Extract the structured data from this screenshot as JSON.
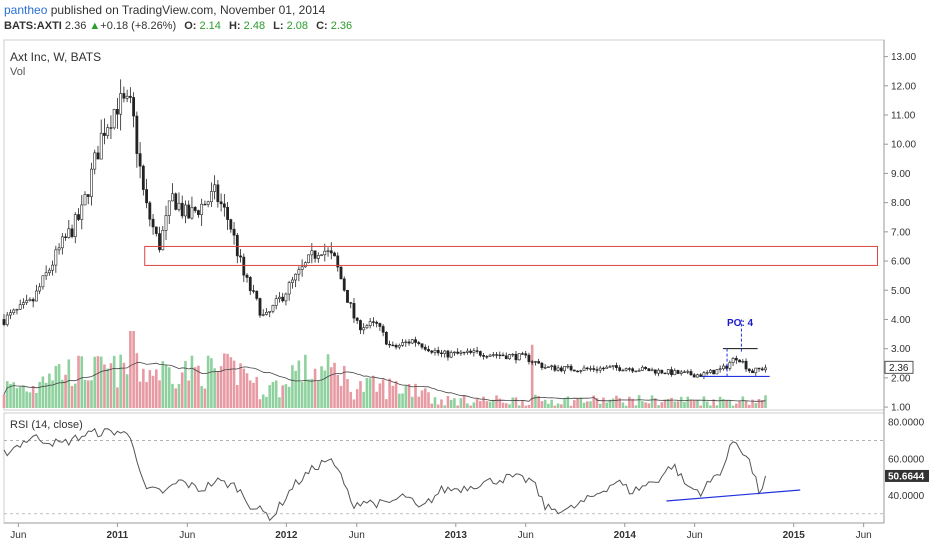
{
  "header": {
    "user": "pantheo",
    "published_text": " published on TradingView.com, November 01, 2014",
    "symbol": "BATS:AXTI",
    "last": "2.36",
    "change": "+0.18 (+8.26%)",
    "o_label": "O:",
    "o_value": "2.14",
    "h_label": "H:",
    "h_value": "2.48",
    "l_label": "L:",
    "l_value": "2.08",
    "c_label": "C:",
    "c_value": "2.36"
  },
  "chart": {
    "title": "Axt Inc, W, BATS",
    "vol_label": "Vol",
    "rsi_label": "RSI (14, close)",
    "po_label": "PO: 4",
    "last_price_tag": "2.36",
    "rsi_value_tag": "50.6644"
  },
  "colors": {
    "up": "#53b987",
    "down": "#eb4d5c",
    "vol_up": "#8fd19e",
    "vol_down": "#e89aa3",
    "rsi_line": "#555555",
    "trend_line": "#2233dd",
    "box": "#d44",
    "accent": "#2a6fd6"
  },
  "chart_data": [
    {
      "type": "candlestick",
      "title": "Axt Inc, W, BATS",
      "xlabel": "",
      "ylabel": "",
      "x_ticks": [
        "Jun",
        "2011",
        "Jun",
        "2012",
        "Jun",
        "2013",
        "Jun",
        "2014",
        "Jun",
        "2015",
        "Jun"
      ],
      "y_ticks": [
        "1.00",
        "2.00",
        "3.00",
        "4.00",
        "5.00",
        "6.00",
        "7.00",
        "8.00",
        "9.00",
        "10.00",
        "11.00",
        "12.00",
        "13.00"
      ],
      "ylim": [
        0.9,
        13.5
      ],
      "xlim": [
        "2010-05-01",
        "2015-07-15"
      ],
      "price_path": [
        [
          "2010-05-01",
          4.0
        ],
        [
          "2010-07-01",
          4.6
        ],
        [
          "2010-09-01",
          6.5
        ],
        [
          "2010-10-15",
          7.6
        ],
        [
          "2010-12-01",
          10.5
        ],
        [
          "2011-01-01",
          11.4
        ],
        [
          "2011-02-01",
          11.2
        ],
        [
          "2011-03-01",
          8.0
        ],
        [
          "2011-04-01",
          6.5
        ],
        [
          "2011-05-01",
          8.2
        ],
        [
          "2011-06-01",
          7.5
        ],
        [
          "2011-08-01",
          8.3
        ],
        [
          "2011-09-01",
          7.3
        ],
        [
          "2011-10-01",
          5.5
        ],
        [
          "2011-11-15",
          4.0
        ],
        [
          "2012-01-01",
          5.0
        ],
        [
          "2012-03-15",
          6.5
        ],
        [
          "2012-04-15",
          6.0
        ],
        [
          "2012-06-01",
          3.8
        ],
        [
          "2012-07-15",
          3.8
        ],
        [
          "2012-08-15",
          3.0
        ],
        [
          "2012-10-01",
          3.3
        ],
        [
          "2012-12-01",
          2.8
        ],
        [
          "2013-03-01",
          2.85
        ],
        [
          "2013-06-01",
          2.7
        ],
        [
          "2013-07-15",
          2.35
        ],
        [
          "2013-10-01",
          2.3
        ],
        [
          "2014-01-01",
          2.35
        ],
        [
          "2014-05-01",
          2.15
        ],
        [
          "2014-06-15",
          2.1
        ],
        [
          "2014-08-01",
          2.3
        ],
        [
          "2014-09-01",
          2.75
        ],
        [
          "2014-10-01",
          2.2
        ],
        [
          "2014-11-01",
          2.36
        ]
      ],
      "last_price": 2.36,
      "resistance_zone": {
        "from": "2011-03-01",
        "to": "2015-07-01",
        "low": 5.85,
        "high": 6.5
      },
      "triangle": {
        "top": {
          "from": "2014-08-01",
          "to": "2014-10-15",
          "price": 3.0
        },
        "base": {
          "from": "2014-06-15",
          "to": "2014-11-10",
          "price": 2.05
        },
        "projection": {
          "date": "2014-09-10",
          "from": 2.9,
          "to": 4.0
        }
      },
      "annotations": [
        "PO: 4"
      ]
    },
    {
      "type": "bar",
      "name": "Vol",
      "pattern": "weekly volume bars; tallest bars around late 2010 to 2011, tapering to very low volume in 2013-2014 with one tall spike near Jun 2013"
    },
    {
      "type": "line",
      "name": "RSI (14, close)",
      "y_ticks": [
        "40.0000",
        "60.0000",
        "80.0000"
      ],
      "ylim": [
        25,
        85
      ],
      "levels": [
        30,
        70
      ],
      "last_value": 50.6644,
      "path": [
        [
          "2010-05-01",
          63
        ],
        [
          "2010-07-01",
          72
        ],
        [
          "2010-09-01",
          68
        ],
        [
          "2010-11-01",
          74
        ],
        [
          "2011-01-01",
          75
        ],
        [
          "2011-02-01",
          72
        ],
        [
          "2011-03-01",
          43
        ],
        [
          "2011-04-15",
          42
        ],
        [
          "2011-05-15",
          48
        ],
        [
          "2011-07-01",
          43
        ],
        [
          "2011-08-01",
          48
        ],
        [
          "2011-09-15",
          45
        ],
        [
          "2011-10-15",
          35
        ],
        [
          "2011-12-01",
          28
        ],
        [
          "2012-01-15",
          45
        ],
        [
          "2012-03-01",
          55
        ],
        [
          "2012-04-01",
          60
        ],
        [
          "2012-05-01",
          50
        ],
        [
          "2012-05-20",
          35
        ],
        [
          "2012-06-15",
          37
        ],
        [
          "2012-08-01",
          35
        ],
        [
          "2012-09-15",
          40
        ],
        [
          "2012-10-15",
          32
        ],
        [
          "2012-12-01",
          43
        ],
        [
          "2013-01-15",
          44
        ],
        [
          "2013-03-01",
          47
        ],
        [
          "2013-05-01",
          50
        ],
        [
          "2013-06-15",
          48
        ],
        [
          "2013-07-15",
          33
        ],
        [
          "2013-09-01",
          32
        ],
        [
          "2013-10-15",
          38
        ],
        [
          "2013-12-15",
          48
        ],
        [
          "2014-01-15",
          42
        ],
        [
          "2014-03-15",
          49
        ],
        [
          "2014-04-15",
          57
        ],
        [
          "2014-05-15",
          45
        ],
        [
          "2014-06-15",
          42
        ],
        [
          "2014-08-01",
          55
        ],
        [
          "2014-08-25",
          71
        ],
        [
          "2014-09-25",
          60
        ],
        [
          "2014-10-20",
          41
        ],
        [
          "2014-11-01",
          50.6644
        ]
      ],
      "trend_line": {
        "from": [
          "2014-04-01",
          37
        ],
        "to": [
          "2015-01-15",
          43
        ]
      }
    }
  ]
}
